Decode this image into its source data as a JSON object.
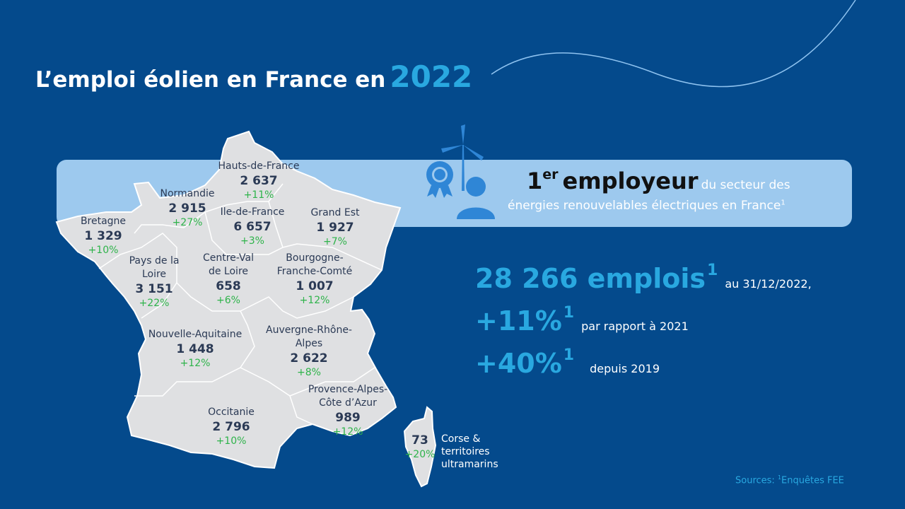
{
  "header": {
    "title": "L’emploi éolien en France en",
    "year": "2022"
  },
  "banner": {
    "rank": "1",
    "rank_suffix": "er",
    "headline": "employeur",
    "text_line1": "du secteur des",
    "text_line2": "énergies renouvelables électriques en France",
    "note": "1"
  },
  "stats": [
    {
      "value": "28 266 emplois",
      "note": "1",
      "text": "au 31/12/2022,"
    },
    {
      "value": "+11%",
      "note": "1",
      "text": "par rapport à 2021"
    },
    {
      "value": "+40%",
      "note": "1",
      "text": "depuis 2019"
    }
  ],
  "regions": [
    {
      "name": "Hauts-de-France",
      "jobs": "2 637",
      "growth": "+11%"
    },
    {
      "name": "Normandie",
      "jobs": "2 915",
      "growth": "+27%"
    },
    {
      "name": "Bretagne",
      "jobs": "1 329",
      "growth": "+10%"
    },
    {
      "name": "Ile-de-France",
      "jobs": "6 657",
      "growth": "+3%"
    },
    {
      "name": "Grand Est",
      "jobs": "1 927",
      "growth": "+7%"
    },
    {
      "name": "Pays de la Loire",
      "jobs": "3 151",
      "growth": "+22%"
    },
    {
      "name": "Centre-Val de Loire",
      "jobs": "658",
      "growth": "+6%"
    },
    {
      "name": "Bourgogne-Franche-Comté",
      "jobs": "1 007",
      "growth": "+12%"
    },
    {
      "name": "Nouvelle-Aquitaine",
      "jobs": "1 448",
      "growth": "+12%"
    },
    {
      "name": "Auvergne-Rhône-Alpes",
      "jobs": "2 622",
      "growth": "+8%"
    },
    {
      "name": "Provence-Alpes-Côte d’Azur",
      "jobs": "989",
      "growth": "+12%"
    },
    {
      "name": "Occitanie",
      "jobs": "2 796",
      "growth": "+10%"
    },
    {
      "name": "Corse & territoires ultramarins",
      "jobs": "73",
      "growth": "+20%"
    }
  ],
  "sources": {
    "label": "Sources:",
    "note": "1",
    "text": "Enquêtes FEE"
  }
}
